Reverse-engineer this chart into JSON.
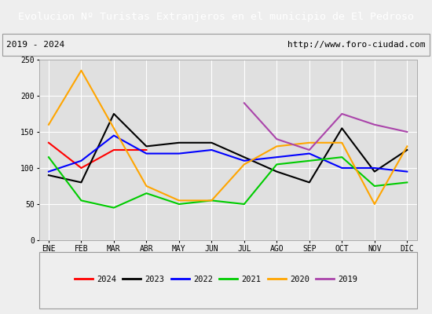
{
  "title": "Evolucion Nº Turistas Extranjeros en el municipio de El Pedroso",
  "title_color": "#ffffff",
  "title_bg_color": "#4472c4",
  "subtitle_left": "2019 - 2024",
  "subtitle_right": "http://www.foro-ciudad.com",
  "months": [
    "ENE",
    "FEB",
    "MAR",
    "ABR",
    "MAY",
    "JUN",
    "JUL",
    "AGO",
    "SEP",
    "OCT",
    "NOV",
    "DIC"
  ],
  "ylim": [
    0,
    250
  ],
  "yticks": [
    0,
    50,
    100,
    150,
    200,
    250
  ],
  "series": {
    "2024": {
      "color": "#ff0000",
      "data": [
        135,
        100,
        125,
        125,
        null,
        null,
        null,
        null,
        null,
        null,
        null,
        null
      ]
    },
    "2023": {
      "color": "#000000",
      "data": [
        90,
        80,
        175,
        130,
        135,
        135,
        115,
        95,
        80,
        155,
        95,
        125
      ]
    },
    "2022": {
      "color": "#0000ff",
      "data": [
        95,
        110,
        145,
        120,
        120,
        125,
        110,
        115,
        120,
        100,
        100,
        95
      ]
    },
    "2021": {
      "color": "#00cc00",
      "data": [
        115,
        55,
        45,
        65,
        50,
        55,
        50,
        105,
        110,
        115,
        75,
        80
      ]
    },
    "2020": {
      "color": "#ffa500",
      "data": [
        160,
        235,
        155,
        75,
        55,
        55,
        105,
        130,
        135,
        135,
        50,
        130
      ]
    },
    "2019": {
      "color": "#aa44aa",
      "data": [
        null,
        null,
        null,
        null,
        null,
        null,
        190,
        140,
        125,
        175,
        160,
        150
      ]
    }
  },
  "legend_order": [
    "2024",
    "2023",
    "2022",
    "2021",
    "2020",
    "2019"
  ],
  "bg_color": "#eeeeee",
  "plot_bg_color": "#e0e0e0",
  "grid_color": "#ffffff",
  "title_fontsize": 9.5,
  "subtitle_fontsize": 8,
  "tick_fontsize": 7,
  "legend_fontsize": 7.5
}
